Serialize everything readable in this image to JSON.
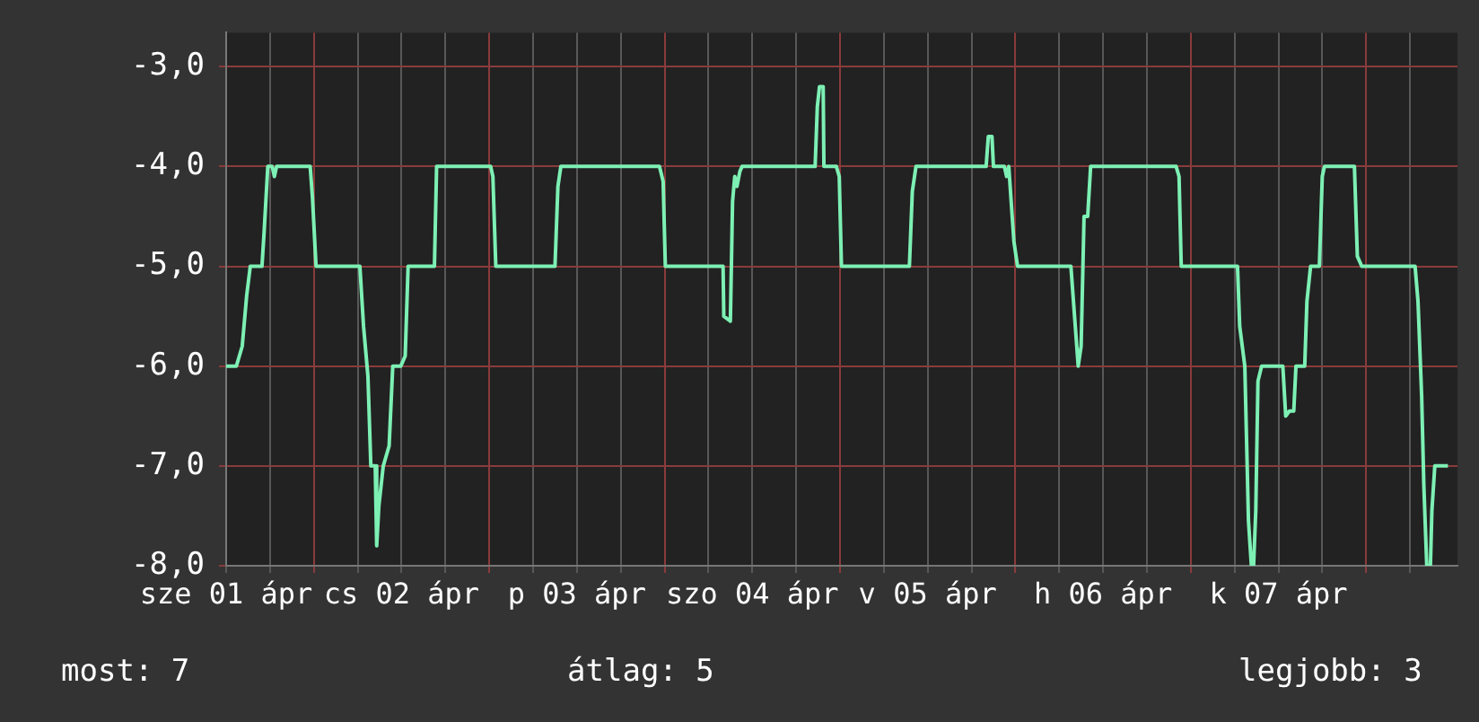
{
  "chart_data": {
    "type": "line",
    "x": [
      "--04-01T12:00",
      "--04-01T13:24",
      "--04-01T14:12",
      "--04-01T14:48",
      "--04-01T15:18",
      "--04-01T16:54",
      "--04-01T17:12",
      "--04-01T17:42",
      "--04-01T18:18",
      "--04-01T18:36",
      "--04-01T18:54",
      "--04-01T23:30",
      "--04-01T23:48",
      "--04-02T00:18",
      "--04-02T06:18",
      "--04-02T06:48",
      "--04-02T07:24",
      "--04-02T07:48",
      "--04-02T08:24",
      "--04-02T08:36",
      "--04-02T08:54",
      "--04-02T09:30",
      "--04-02T10:18",
      "--04-02T10:48",
      "--04-02T11:54",
      "--04-02T12:30",
      "--04-02T12:54",
      "--04-02T16:30",
      "--04-02T16:48",
      "--04-03T00:12",
      "--04-03T00:30",
      "--04-03T00:54",
      "--04-03T09:00",
      "--04-03T09:24",
      "--04-03T09:48",
      "--04-03T23:18",
      "--04-03T23:48",
      "--04-04T00:06",
      "--04-04T08:00",
      "--04-04T08:06",
      "--04-04T09:00",
      "--04-04T09:18",
      "--04-04T09:36",
      "--04-04T09:54",
      "--04-04T10:18",
      "--04-04T10:36",
      "--04-04T20:36",
      "--04-04T20:54",
      "--04-04T21:12",
      "--04-04T21:42",
      "--04-04T21:48",
      "--04-04T23:30",
      "--04-04T23:54",
      "--04-05T00:12",
      "--04-05T09:30",
      "--04-05T09:54",
      "--04-05T10:24",
      "--04-05T20:00",
      "--04-05T20:18",
      "--04-05T20:48",
      "--04-05T21:00",
      "--04-05T22:30",
      "--04-05T22:48",
      "--04-05T23:06",
      "--04-05T23:48",
      "--04-06T00:18",
      "--04-06T07:36",
      "--04-06T08:06",
      "--04-06T08:36",
      "--04-06T09:00",
      "--04-06T09:24",
      "--04-06T09:54",
      "--04-06T10:18",
      "--04-06T22:00",
      "--04-06T22:24",
      "--04-06T22:42",
      "--04-07T06:24",
      "--04-07T06:42",
      "--04-07T07:24",
      "--04-07T07:54",
      "--04-07T08:18",
      "--04-07T08:36",
      "--04-07T08:54",
      "--04-07T09:12",
      "--04-07T09:42",
      "--04-07T12:36",
      "--04-07T13:00",
      "--04-07T13:30",
      "--04-07T14:06",
      "--04-07T14:24",
      "--04-07T15:36",
      "--04-07T15:54",
      "--04-07T16:24",
      "--04-07T17:36",
      "--04-07T18:00",
      "--04-07T18:18",
      "--04-07T22:24",
      "--04-07T22:48",
      "--04-07T23:24",
      "--04-08T06:42",
      "--04-08T07:06",
      "--04-08T07:36",
      "--04-08T07:54",
      "--04-08T08:18",
      "--04-08T08:48",
      "--04-08T09:00",
      "--04-08T09:24",
      "--04-08T11:12"
    ],
    "series": [
      {
        "color": "#7df0b4",
        "values": [
          -6,
          -6,
          -5.8,
          -5.3,
          -5,
          -5,
          -4.65,
          -4,
          -4,
          -4.1,
          -4,
          -4,
          -4.3,
          -5,
          -5,
          -5.6,
          -6.1,
          -7,
          -7,
          -7.8,
          -7.4,
          -7,
          -6.8,
          -6,
          -6,
          -5.9,
          -5,
          -5,
          -4,
          -4,
          -4.1,
          -5,
          -5,
          -4.2,
          -4,
          -4,
          -4.15,
          -5,
          -5,
          -5.5,
          -5.55,
          -4.35,
          -4.1,
          -4.2,
          -4.05,
          -4,
          -4,
          -3.4,
          -3.2,
          -3.2,
          -4,
          -4,
          -4.1,
          -5,
          -5,
          -4.25,
          -4,
          -4,
          -3.7,
          -3.7,
          -4,
          -4,
          -4.1,
          -4,
          -4.75,
          -5,
          -5,
          -5.5,
          -6,
          -5.8,
          -4.5,
          -4.5,
          -4,
          -4,
          -4.1,
          -5,
          -5,
          -5.6,
          -6,
          -7.55,
          -8,
          -8,
          -7.45,
          -6.15,
          -6,
          -6,
          -6.5,
          -6.45,
          -6.45,
          -6,
          -6,
          -5.35,
          -5,
          -5,
          -4.1,
          -4,
          -4,
          -4.9,
          -5,
          -5,
          -5.35,
          -6.3,
          -7.2,
          -8,
          -8,
          -7.45,
          -7,
          -7
        ]
      }
    ],
    "xlim": [
      "--04-01T12:00",
      "--04-08T12:30"
    ],
    "xticks": [
      {
        "value": "--04-01T12:00",
        "label": "sze 01 ápr"
      },
      {
        "value": "--04-01T18:00",
        "label": null
      },
      {
        "value": "--04-02T00:00",
        "label": null
      },
      {
        "value": "--04-02T06:00",
        "label": null
      },
      {
        "value": "--04-02T12:00",
        "label": "cs 02 ápr"
      },
      {
        "value": "--04-02T18:00",
        "label": null
      },
      {
        "value": "--04-03T00:00",
        "label": null
      },
      {
        "value": "--04-03T06:00",
        "label": null
      },
      {
        "value": "--04-03T12:00",
        "label": "p 03 ápr"
      },
      {
        "value": "--04-03T18:00",
        "label": null
      },
      {
        "value": "--04-04T00:00",
        "label": null
      },
      {
        "value": "--04-04T06:00",
        "label": null
      },
      {
        "value": "--04-04T12:00",
        "label": "szo 04 ápr"
      },
      {
        "value": "--04-04T18:00",
        "label": null
      },
      {
        "value": "--04-05T00:00",
        "label": null
      },
      {
        "value": "--04-05T06:00",
        "label": null
      },
      {
        "value": "--04-05T12:00",
        "label": "v 05 ápr"
      },
      {
        "value": "--04-05T18:00",
        "label": null
      },
      {
        "value": "--04-06T00:00",
        "label": null
      },
      {
        "value": "--04-06T06:00",
        "label": null
      },
      {
        "value": "--04-06T12:00",
        "label": "h 06 ápr"
      },
      {
        "value": "--04-06T18:00",
        "label": null
      },
      {
        "value": "--04-07T00:00",
        "label": null
      },
      {
        "value": "--04-07T06:00",
        "label": null
      },
      {
        "value": "--04-07T12:00",
        "label": "k 07 ápr"
      },
      {
        "value": "--04-07T18:00",
        "label": null
      },
      {
        "value": "--04-08T00:00",
        "label": null
      },
      {
        "value": "--04-08T06:00",
        "label": null
      }
    ],
    "ylim": [
      -8,
      -2.66
    ],
    "yticks": [
      {
        "value": -8,
        "label": "-8,0"
      },
      {
        "value": -7,
        "label": "-7,0"
      },
      {
        "value": -6,
        "label": "-6,0"
      },
      {
        "value": -5,
        "label": "-5,0"
      },
      {
        "value": -4,
        "label": "-4,0"
      },
      {
        "value": -3,
        "label": "-3,0"
      }
    ],
    "grid": true,
    "legend": false,
    "marker": "none",
    "line_style": "solid",
    "annotations": [
      "most: 7",
      "átlag: 5",
      "legjobb: 3"
    ]
  }
}
